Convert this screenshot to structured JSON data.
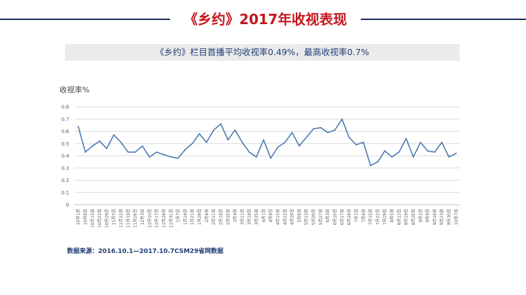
{
  "header": {
    "title": "《乡约》2017年收视表现",
    "subtitle": "《乡约》栏目首播平均收视率0.49%，最高收视率0.7%"
  },
  "source_note": "数据来源：2016.10.1—2017.10.7CSM29省网数据",
  "colors": {
    "title": "#c4161c",
    "line": "#1b2b5c",
    "series": "#4a78b0",
    "grid": "#d9d9d9"
  },
  "chart_data": {
    "type": "line",
    "ylabel": "收视率%",
    "ylim": [
      0,
      0.8
    ],
    "yticks": [
      0,
      0.1,
      0.2,
      0.3,
      0.4,
      0.5,
      0.6,
      0.7,
      0.8
    ],
    "grid": true,
    "categories": [
      "10月1日",
      "10月8日",
      "10月15日",
      "10月22日",
      "10月29日",
      "11月5日",
      "11月12日",
      "11月19日",
      "11月26日",
      "12月3日",
      "12月10日",
      "12月17日",
      "12月24日",
      "12月31日",
      "1月7日",
      "1月14日",
      "1月21日",
      "1月28日",
      "2月4日",
      "2月11日",
      "2月18日",
      "2月25日",
      "3月4日",
      "3月11日",
      "3月18日",
      "3月25日",
      "4月1日",
      "4月8日",
      "4月15日",
      "4月22日",
      "4月29日",
      "5月6日",
      "5月13日",
      "5月20日",
      "5月27日",
      "6月3日",
      "6月10日",
      "6月17日",
      "6月24日",
      "7月1日",
      "7月8日",
      "7月15日",
      "7月22日",
      "7月29日",
      "8月5日",
      "8月12日",
      "8月19日",
      "8月26日",
      "9月2日",
      "9月9日",
      "9月16日",
      "9月23日",
      "9月30日",
      "10月7日"
    ],
    "series": [
      {
        "values": [
          0.64,
          0.43,
          0.48,
          0.52,
          0.46,
          0.57,
          0.51,
          0.43,
          0.43,
          0.48,
          0.39,
          0.43,
          0.41,
          0.39,
          0.38,
          0.45,
          0.5,
          0.58,
          0.51,
          0.61,
          0.66,
          0.53,
          0.61,
          0.51,
          0.43,
          0.39,
          0.53,
          0.38,
          0.47,
          0.51,
          0.59,
          0.48,
          0.55,
          0.62,
          0.63,
          0.59,
          0.61,
          0.7,
          0.55,
          0.49,
          0.51,
          0.32,
          0.35,
          0.44,
          0.39,
          0.43,
          0.54,
          0.39,
          0.51,
          0.44,
          0.43,
          0.51,
          0.39,
          0.42
        ]
      }
    ]
  }
}
